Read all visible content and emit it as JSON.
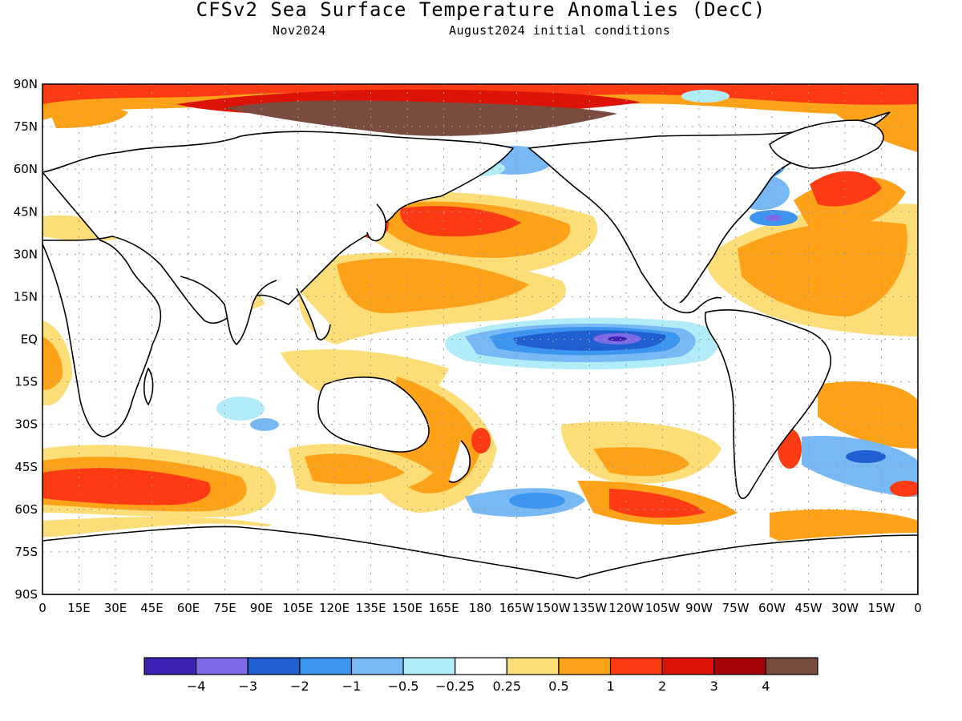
{
  "header": {
    "title": "CFSv2 Sea Surface Temperature Anomalies (DecC)",
    "valid_month": "Nov2024",
    "initial_conditions": "August2024 initial conditions"
  },
  "map": {
    "lat_labels": [
      "90N",
      "75N",
      "60N",
      "45N",
      "30N",
      "15N",
      "EQ",
      "15S",
      "30S",
      "45S",
      "60S",
      "75S",
      "90S"
    ],
    "lon_labels": [
      "0",
      "15E",
      "30E",
      "45E",
      "60E",
      "75E",
      "90E",
      "105E",
      "120E",
      "135E",
      "150E",
      "165E",
      "180",
      "165W",
      "150W",
      "135W",
      "120W",
      "105W",
      "90W",
      "75W",
      "60W",
      "45W",
      "30W",
      "15W",
      "0"
    ],
    "colors": {
      "land": "#ffffff",
      "coast": "#000000",
      "grid": "#9a9a9a",
      "frame": "#000000"
    },
    "features": [
      {
        "name": "arctic-warm-band",
        "level": "2"
      },
      {
        "name": "siberian-arctic-max",
        "level": "4"
      },
      {
        "name": "north-pacific-warm-blob",
        "level": "1"
      },
      {
        "name": "western-pacific-warm",
        "level": "0.5"
      },
      {
        "name": "equatorial-pacific-cold-tongue",
        "level": "-1"
      },
      {
        "name": "equatorial-pacific-core-min",
        "level": "-4"
      },
      {
        "name": "north-atlantic-warm",
        "level": "1"
      },
      {
        "name": "south-indian-warm-band",
        "level": "2"
      },
      {
        "name": "southeast-pacific-warm",
        "level": "2"
      },
      {
        "name": "tasman-warm",
        "level": "1"
      }
    ]
  },
  "colorbar": {
    "colors": [
      "#3d22b4",
      "#7d6ae6",
      "#1f5fd2",
      "#3c96f0",
      "#78b9f5",
      "#b2ecf8",
      "#ffffff",
      "#fddd77",
      "#fda219",
      "#fc3a13",
      "#dc1408",
      "#a40406",
      "#7a4c40"
    ],
    "labels": [
      "−4",
      "−3",
      "−2",
      "−1",
      "−0.5",
      "−0.25",
      "0.25",
      "0.5",
      "1",
      "2",
      "3",
      "4"
    ]
  }
}
